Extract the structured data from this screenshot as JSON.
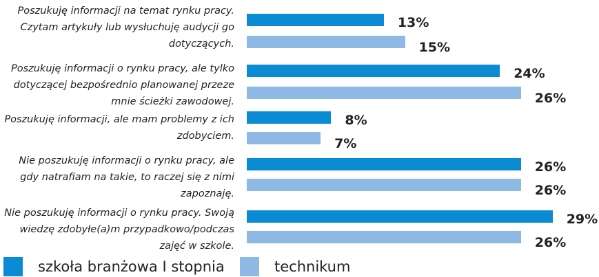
{
  "chart_data": {
    "type": "bar",
    "orientation": "horizontal",
    "categories": [
      "Poszukuję informacji na temat rynku pracy. Czytam artykuły lub wysłuchuję audycji go dotyczących.",
      "Poszukuję informacji o rynku pracy, ale tylko dotyczącej bezpośrednio planowanej przeze mnie ścieżki zawodowej.",
      "Poszukuję informacji, ale mam problemy z ich zdobyciem.",
      "Nie poszukuję informacji o rynku pracy, ale gdy natrafiam na takie, to raczej się z nimi zapoznaję.",
      "Nie poszukuję informacji o rynku pracy. Swoją wiedzę zdobyłe(a)m przypadkowo/podczas zajęć w szkole."
    ],
    "series": [
      {
        "name": "szkoła branżowa I stopnia",
        "color": "#0b8bd3",
        "values": [
          13,
          24,
          8,
          26,
          29
        ],
        "value_labels": [
          "13%",
          "24%",
          "8%",
          "26%",
          "29%"
        ]
      },
      {
        "name": "technikum",
        "color": "#8fb9e5",
        "values": [
          15,
          26,
          7,
          26,
          26
        ],
        "value_labels": [
          "15%",
          "26%",
          "7%",
          "26%",
          "26%"
        ]
      }
    ]
  }
}
